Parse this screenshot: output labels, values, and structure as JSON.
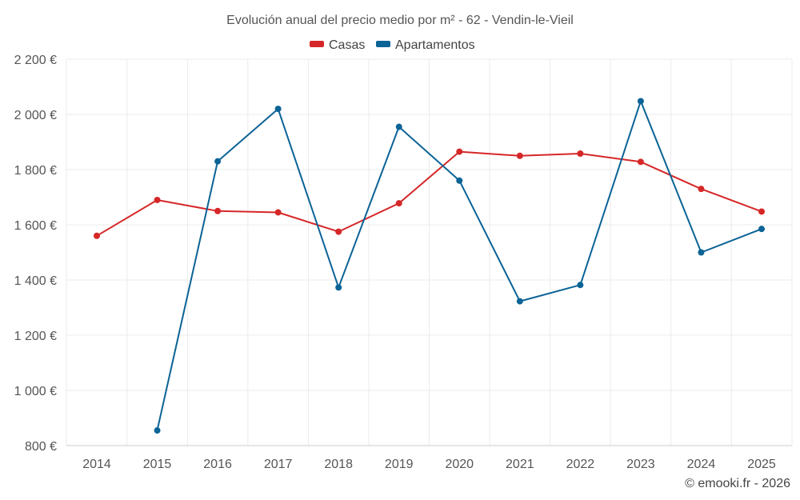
{
  "chart_data": {
    "type": "line",
    "title": "Evolución anual del precio medio por m² - 62 - Vendin-le-Vieil",
    "categories": [
      "2014",
      "2015",
      "2016",
      "2017",
      "2018",
      "2019",
      "2020",
      "2021",
      "2022",
      "2023",
      "2024",
      "2025"
    ],
    "series": [
      {
        "name": "Casas",
        "color": "#d62728",
        "values": [
          1560,
          1690,
          1650,
          1645,
          1575,
          1678,
          1865,
          1850,
          1858,
          1828,
          1730,
          1648
        ]
      },
      {
        "name": "Apartamentos",
        "color": "#0b6396",
        "values": [
          null,
          855,
          1830,
          2020,
          1373,
          1955,
          1760,
          1323,
          1382,
          2048,
          1500,
          1585
        ]
      }
    ],
    "yticks": [
      800,
      1000,
      1200,
      1400,
      1600,
      1800,
      2000,
      2200
    ],
    "ytick_labels": [
      "800 €",
      "1 000 €",
      "1 200 €",
      "1 400 €",
      "1 600 €",
      "1 800 €",
      "2 000 €",
      "2 200 €"
    ],
    "ylim": [
      800,
      2200
    ],
    "xlabel": "",
    "ylabel": "",
    "grid": true,
    "legend_position": "top-center"
  },
  "credit": "© emooki.fr - 2026"
}
